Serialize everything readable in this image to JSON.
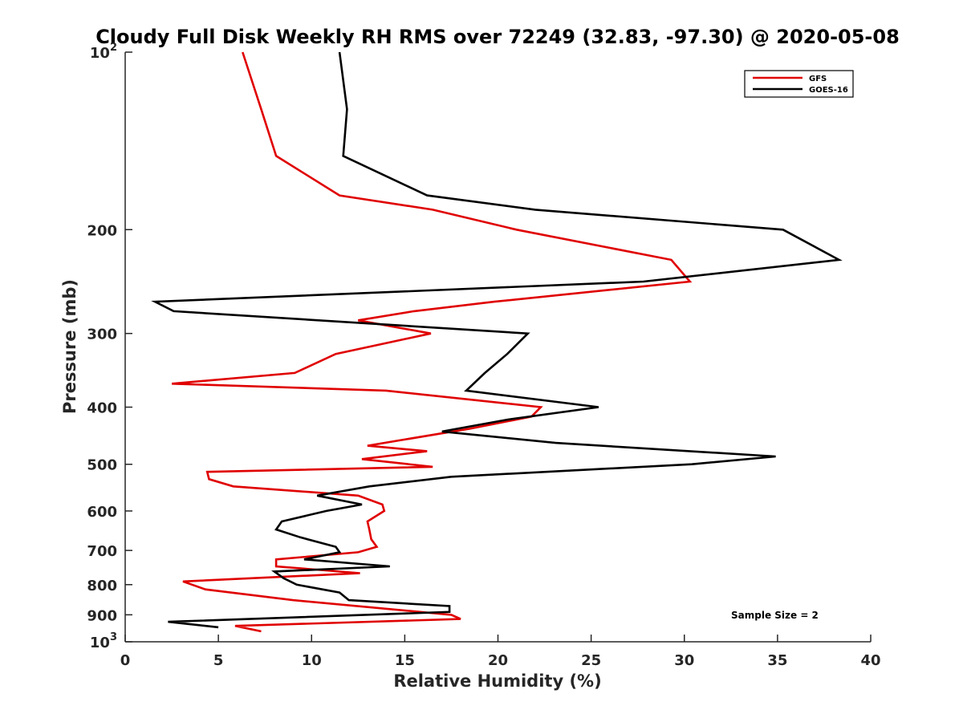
{
  "chart_data": {
    "type": "line",
    "title": "Cloudy Full Disk Weekly RH RMS over 72249 (32.83, -97.30) @ 2020-05-08",
    "xlabel": "Relative Humidity (%)",
    "ylabel": "Pressure (mb)",
    "xlim": [
      0,
      40
    ],
    "ylim": [
      100,
      1000
    ],
    "y_scale": "log",
    "y_reversed": true,
    "grid": false,
    "legend_position": "top-right",
    "x_ticks": [
      "0",
      "5",
      "10",
      "15",
      "20",
      "25",
      "30",
      "35",
      "40"
    ],
    "y_ticks": [
      {
        "value": 100,
        "base": "10",
        "exp": "2"
      },
      {
        "value": 200,
        "label": "200"
      },
      {
        "value": 300,
        "label": "300"
      },
      {
        "value": 400,
        "label": "400"
      },
      {
        "value": 500,
        "label": "500"
      },
      {
        "value": 600,
        "label": "600"
      },
      {
        "value": 700,
        "label": "700"
      },
      {
        "value": 800,
        "label": "800"
      },
      {
        "value": 900,
        "label": "900"
      },
      {
        "value": 1000,
        "base": "10",
        "exp": "3"
      }
    ],
    "annotation": "Sample Size = 2",
    "series": [
      {
        "name": "GFS",
        "color": "#e00000",
        "points": [
          [
            6.3,
            100
          ],
          [
            7.3,
            125
          ],
          [
            8.1,
            150
          ],
          [
            11.5,
            175
          ],
          [
            16.5,
            185
          ],
          [
            21.0,
            200
          ],
          [
            29.3,
            225
          ],
          [
            30.3,
            245
          ],
          [
            19.8,
            265
          ],
          [
            15.5,
            275
          ],
          [
            12.5,
            285
          ],
          [
            16.4,
            300
          ],
          [
            11.3,
            325
          ],
          [
            9.1,
            350
          ],
          [
            2.5,
            365
          ],
          [
            14.0,
            375
          ],
          [
            22.3,
            400
          ],
          [
            21.8,
            415
          ],
          [
            18.5,
            435
          ],
          [
            13.0,
            465
          ],
          [
            16.2,
            475
          ],
          [
            12.7,
            490
          ],
          [
            16.5,
            505
          ],
          [
            4.4,
            515
          ],
          [
            4.5,
            530
          ],
          [
            5.8,
            545
          ],
          [
            12.5,
            565
          ],
          [
            13.8,
            585
          ],
          [
            13.9,
            600
          ],
          [
            13.0,
            625
          ],
          [
            13.1,
            645
          ],
          [
            13.2,
            670
          ],
          [
            13.5,
            690
          ],
          [
            12.5,
            705
          ],
          [
            8.1,
            725
          ],
          [
            8.1,
            745
          ],
          [
            12.6,
            765
          ],
          [
            3.1,
            790
          ],
          [
            4.3,
            815
          ],
          [
            9.0,
            850
          ],
          [
            17.5,
            900
          ],
          [
            18.0,
            915
          ],
          [
            5.9,
            940
          ],
          [
            7.3,
            960
          ]
        ]
      },
      {
        "name": "GOES-16",
        "color": "#000000",
        "points": [
          [
            11.5,
            100
          ],
          [
            11.9,
            125
          ],
          [
            11.7,
            150
          ],
          [
            16.2,
            175
          ],
          [
            22.0,
            185
          ],
          [
            35.3,
            200
          ],
          [
            38.3,
            225
          ],
          [
            27.8,
            245
          ],
          [
            1.6,
            265
          ],
          [
            2.6,
            275
          ],
          [
            21.6,
            300
          ],
          [
            20.5,
            325
          ],
          [
            19.3,
            350
          ],
          [
            18.3,
            375
          ],
          [
            25.4,
            400
          ],
          [
            20.5,
            420
          ],
          [
            17.0,
            440
          ],
          [
            23.1,
            460
          ],
          [
            34.9,
            485
          ],
          [
            30.4,
            500
          ],
          [
            17.5,
            525
          ],
          [
            13.1,
            545
          ],
          [
            10.3,
            565
          ],
          [
            12.7,
            585
          ],
          [
            10.8,
            600
          ],
          [
            8.4,
            625
          ],
          [
            8.1,
            645
          ],
          [
            9.4,
            665
          ],
          [
            11.3,
            690
          ],
          [
            11.5,
            705
          ],
          [
            9.6,
            725
          ],
          [
            14.2,
            745
          ],
          [
            8.0,
            760
          ],
          [
            8.5,
            780
          ],
          [
            9.2,
            800
          ],
          [
            11.5,
            825
          ],
          [
            12.0,
            850
          ],
          [
            17.4,
            870
          ],
          [
            17.4,
            890
          ],
          [
            2.3,
            925
          ],
          [
            5.0,
            945
          ]
        ]
      }
    ]
  }
}
